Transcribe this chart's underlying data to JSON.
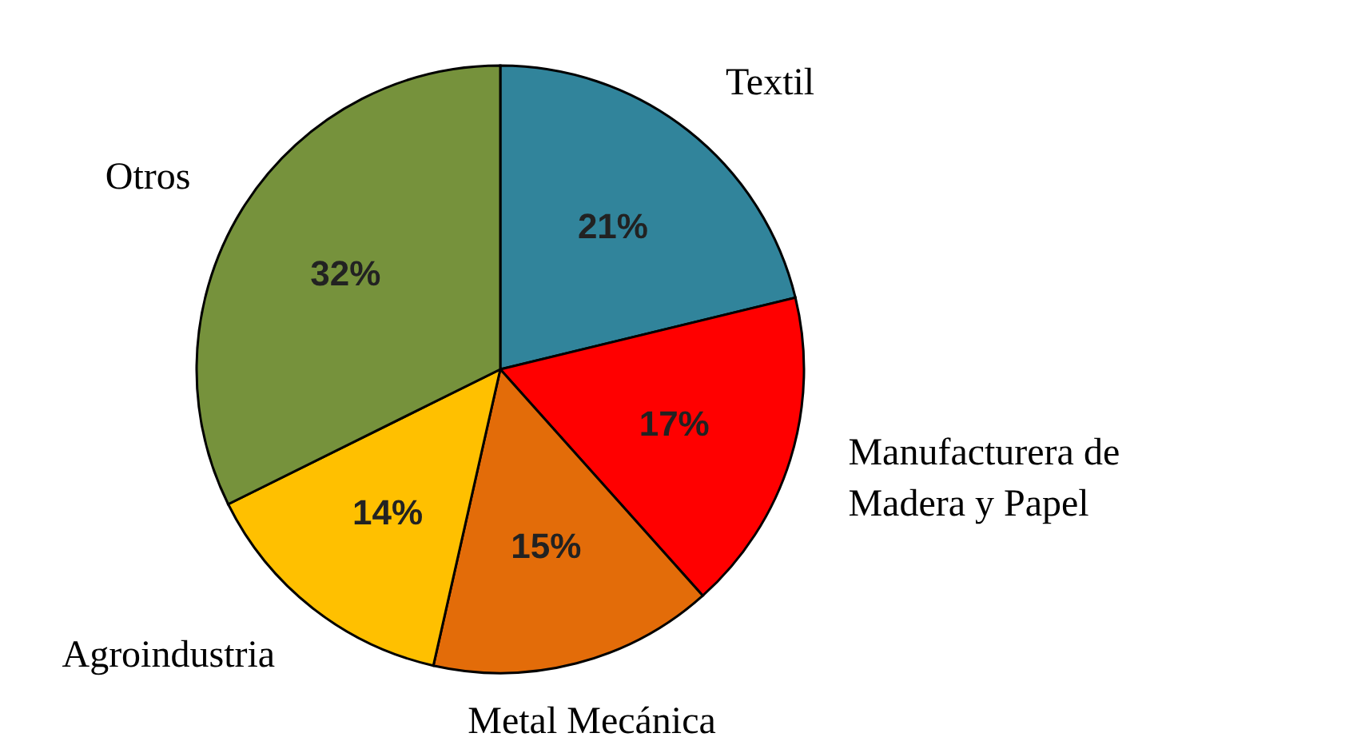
{
  "chart_data": {
    "type": "pie",
    "categories": [
      "Textil",
      "Manufacturera de Madera y Papel",
      "Metal Mecánica",
      "Agroindustria",
      "Otros"
    ],
    "values": [
      21,
      17,
      15,
      14,
      32
    ],
    "value_labels": [
      "21%",
      "17%",
      "15%",
      "14%",
      "32%"
    ],
    "colors": [
      "#31849b",
      "#ff0000",
      "#e36c09",
      "#ffc000",
      "#76923c"
    ]
  }
}
